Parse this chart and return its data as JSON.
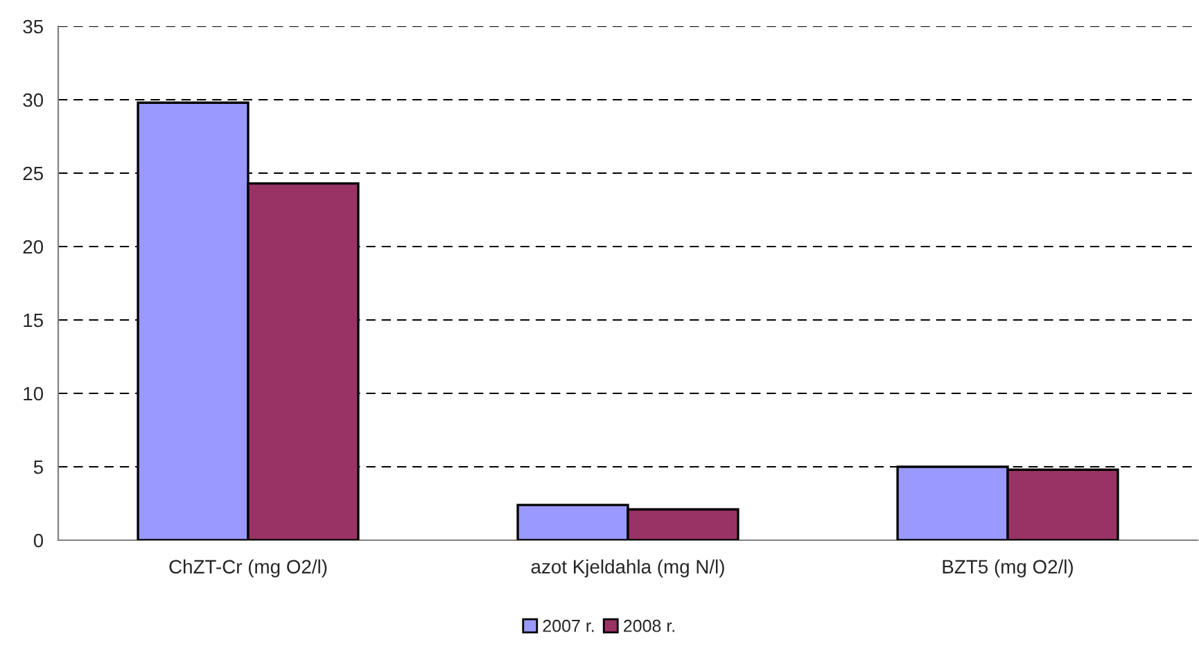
{
  "chart_data": {
    "type": "bar",
    "categories": [
      "ChZT-Cr (mg O2/l)",
      "azot Kjeldahla (mg N/l)",
      "BZT5 (mg O2/l)"
    ],
    "series": [
      {
        "name": "2007 r.",
        "color": "#9999ff",
        "values": [
          29.8,
          2.4,
          5.0
        ]
      },
      {
        "name": "2008 r.",
        "color": "#993366",
        "values": [
          24.3,
          2.1,
          4.8
        ]
      }
    ],
    "ylim": [
      0,
      35
    ],
    "yticks": [
      0,
      5,
      10,
      15,
      20,
      25,
      30,
      35
    ],
    "grid": "y",
    "legend": "bottom"
  }
}
